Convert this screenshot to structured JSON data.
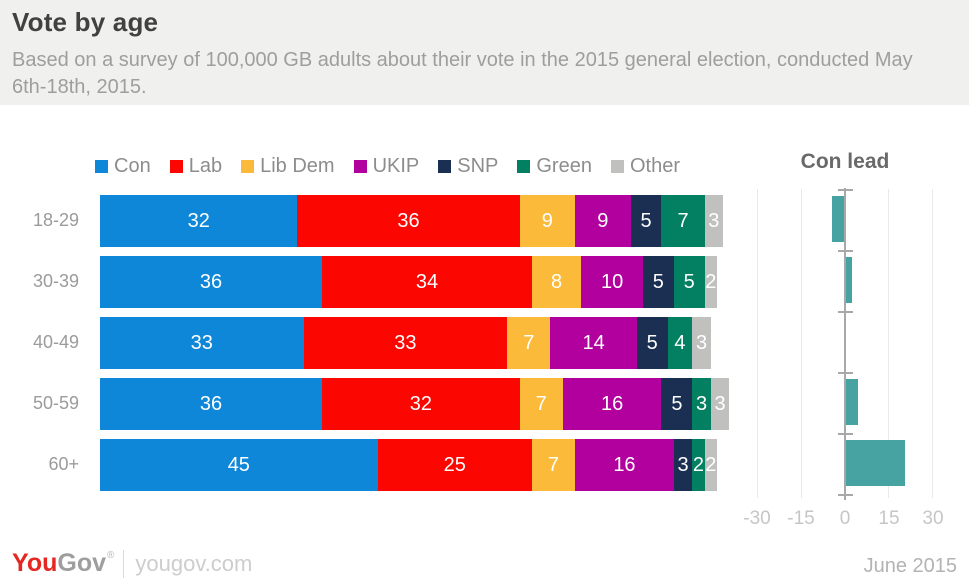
{
  "header": {
    "title": "Vote by age",
    "subtitle": "Based on a survey of 100,000 GB adults about their vote in the 2015 general election, conducted May 6th-18th, 2015."
  },
  "chart_data": {
    "type": "bar",
    "orientation": "horizontal-stacked",
    "title": "Vote by age",
    "categories": [
      "18-29",
      "30-39",
      "40-49",
      "50-59",
      "60+"
    ],
    "series": [
      {
        "name": "Con",
        "color": "#0e87d8",
        "values": [
          32,
          36,
          33,
          36,
          45
        ]
      },
      {
        "name": "Lab",
        "color": "#fb0600",
        "values": [
          36,
          34,
          33,
          32,
          25
        ]
      },
      {
        "name": "Lib Dem",
        "color": "#fcba3a",
        "values": [
          9,
          8,
          7,
          7,
          7
        ]
      },
      {
        "name": "UKIP",
        "color": "#b2009f",
        "values": [
          9,
          10,
          14,
          16,
          16
        ]
      },
      {
        "name": "SNP",
        "color": "#1a2f52",
        "values": [
          5,
          5,
          5,
          5,
          3
        ]
      },
      {
        "name": "Green",
        "color": "#038061",
        "values": [
          7,
          5,
          4,
          3,
          2
        ]
      },
      {
        "name": "Other",
        "color": "#c0c0bf",
        "values": [
          3,
          2,
          3,
          3,
          2
        ]
      }
    ],
    "value_label_color": "#ffffff",
    "legend_position": "top",
    "secondary_chart": {
      "title": "Con lead",
      "type": "bar",
      "categories": [
        "18-29",
        "30-39",
        "40-49",
        "50-59",
        "60+"
      ],
      "values": [
        -4,
        2,
        0,
        4,
        20
      ],
      "bar_color": "#47a2a2",
      "axis_ticks": [
        -30,
        -15,
        0,
        15,
        30
      ],
      "xlim": [
        -36,
        42
      ],
      "grid": true
    }
  },
  "footer": {
    "brand_you": "You",
    "brand_gov": "Gov",
    "brand_tm": "®",
    "site": "yougov.com",
    "date": "June 2015"
  }
}
